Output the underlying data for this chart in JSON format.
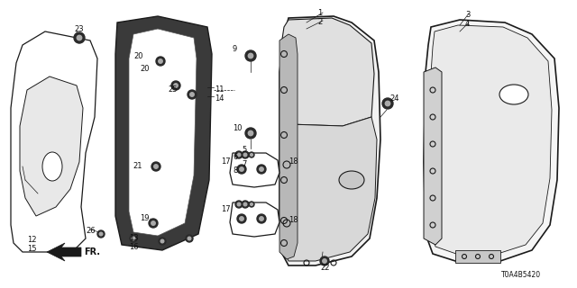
{
  "background_color": "#ffffff",
  "diagram_code": "T0A4B5420",
  "line_color": "#1a1a1a",
  "text_color": "#111111",
  "font_size": 6.0
}
